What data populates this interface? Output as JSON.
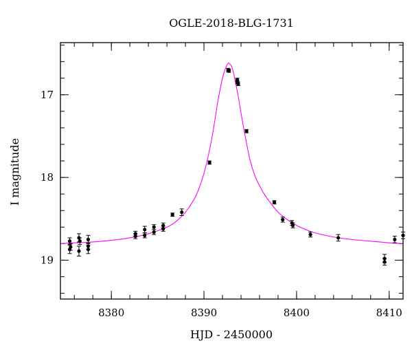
{
  "chart_data": {
    "type": "scatter",
    "title": "OGLE-2018-BLG-1731",
    "xlabel": "HJD - 2450000",
    "ylabel": "I magnitude",
    "xlim": [
      8374.5,
      8411.5
    ],
    "ylim": [
      19.47,
      16.37
    ],
    "y_inverted": true,
    "x_major_ticks": [
      8380,
      8390,
      8400,
      8410
    ],
    "x_tick_labels": [
      "8380",
      "8390",
      "8400",
      "8410"
    ],
    "x_minor_step": 2,
    "y_major_ticks": [
      17,
      18,
      19
    ],
    "y_tick_labels": [
      "17",
      "18",
      "19"
    ],
    "y_minor_step": 0.2,
    "grid": false,
    "series": [
      {
        "kind": "points",
        "color": "#000000",
        "points": [
          {
            "x": 8375.5,
            "y": 18.77,
            "err": 0.04
          },
          {
            "x": 8375.5,
            "y": 18.87,
            "err": 0.05
          },
          {
            "x": 8375.6,
            "y": 18.84,
            "err": 0.04
          },
          {
            "x": 8376.5,
            "y": 18.73,
            "err": 0.05
          },
          {
            "x": 8376.6,
            "y": 18.77,
            "err": 0.04
          },
          {
            "x": 8376.5,
            "y": 18.89,
            "err": 0.06
          },
          {
            "x": 8377.5,
            "y": 18.75,
            "err": 0.05
          },
          {
            "x": 8377.5,
            "y": 18.83,
            "err": 0.04
          },
          {
            "x": 8377.5,
            "y": 18.87,
            "err": 0.05
          },
          {
            "x": 8382.6,
            "y": 18.68,
            "err": 0.03
          },
          {
            "x": 8382.6,
            "y": 18.71,
            "err": 0.03
          },
          {
            "x": 8383.6,
            "y": 18.63,
            "err": 0.04
          },
          {
            "x": 8383.6,
            "y": 18.7,
            "err": 0.03
          },
          {
            "x": 8384.6,
            "y": 18.6,
            "err": 0.03
          },
          {
            "x": 8384.6,
            "y": 18.66,
            "err": 0.03
          },
          {
            "x": 8385.6,
            "y": 18.58,
            "err": 0.03
          },
          {
            "x": 8385.6,
            "y": 18.62,
            "err": 0.03
          },
          {
            "x": 8386.6,
            "y": 18.45,
            "err": 0.02
          },
          {
            "x": 8387.6,
            "y": 18.42,
            "err": 0.04
          },
          {
            "x": 8390.6,
            "y": 17.82,
            "err": 0.02
          },
          {
            "x": 8392.6,
            "y": 16.7,
            "err": 0.02
          },
          {
            "x": 8392.7,
            "y": 16.71,
            "err": 0.02
          },
          {
            "x": 8393.6,
            "y": 16.82,
            "err": 0.02
          },
          {
            "x": 8393.6,
            "y": 16.85,
            "err": 0.02
          },
          {
            "x": 8393.7,
            "y": 16.87,
            "err": 0.02
          },
          {
            "x": 8394.6,
            "y": 17.44,
            "err": 0.02
          },
          {
            "x": 8397.6,
            "y": 18.3,
            "err": 0.02
          },
          {
            "x": 8398.5,
            "y": 18.51,
            "err": 0.03
          },
          {
            "x": 8399.5,
            "y": 18.55,
            "err": 0.03
          },
          {
            "x": 8399.6,
            "y": 18.58,
            "err": 0.03
          },
          {
            "x": 8401.5,
            "y": 18.69,
            "err": 0.03
          },
          {
            "x": 8404.5,
            "y": 18.73,
            "err": 0.04
          },
          {
            "x": 8409.5,
            "y": 18.98,
            "err": 0.05
          },
          {
            "x": 8409.5,
            "y": 19.02,
            "err": 0.04
          },
          {
            "x": 8410.6,
            "y": 18.75,
            "err": 0.04
          },
          {
            "x": 8411.5,
            "y": 18.7,
            "err": 0.04
          }
        ]
      },
      {
        "kind": "line",
        "color": "#ff00ff",
        "x": [
          8374.5,
          8376,
          8378,
          8380,
          8382,
          8384,
          8386,
          8387,
          8388,
          8389,
          8389.5,
          8390,
          8390.5,
          8391,
          8391.5,
          8392,
          8392.3,
          8392.6,
          8392.8,
          8393,
          8393.2,
          8393.4,
          8393.7,
          8394,
          8394.5,
          8395,
          8395.5,
          8396,
          8396.5,
          8397,
          8398,
          8399,
          8400,
          8401,
          8402,
          8404,
          8406,
          8408,
          8410,
          8411.5
        ],
        "y": [
          18.8,
          18.79,
          18.78,
          18.76,
          18.73,
          18.68,
          18.6,
          18.53,
          18.42,
          18.25,
          18.12,
          17.95,
          17.72,
          17.43,
          17.08,
          16.8,
          16.69,
          16.62,
          16.63,
          16.66,
          16.74,
          16.85,
          17.02,
          17.22,
          17.53,
          17.8,
          17.98,
          18.1,
          18.2,
          18.28,
          18.42,
          18.51,
          18.58,
          18.63,
          18.67,
          18.72,
          18.75,
          18.77,
          18.79,
          18.8
        ]
      }
    ]
  }
}
